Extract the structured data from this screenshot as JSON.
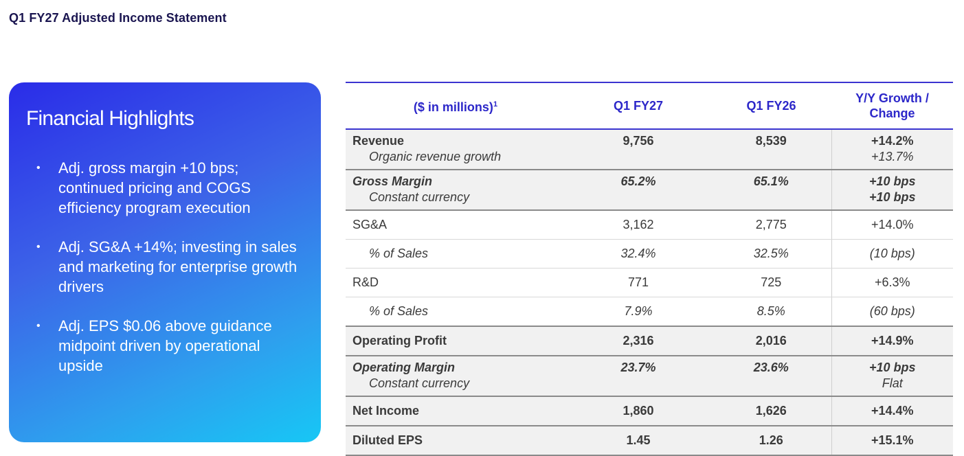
{
  "page": {
    "title": "Q1 FY27 Adjusted Income Statement"
  },
  "highlights": {
    "title": "Financial Highlights",
    "bullets": [
      "Adj. gross margin +10 bps; continued pricing and COGS efficiency program execution",
      "Adj. SG&A +14%; investing in sales and marketing for enterprise growth drivers",
      "Adj. EPS $0.06 above guidance midpoint driven by operational upside"
    ],
    "bullet_symbol": "•"
  },
  "table": {
    "headers": {
      "label": "($ in millions)",
      "label_sup": "1",
      "col1": "Q1 FY27",
      "col2": "Q1 FY26",
      "col3_line1": "Y/Y Growth /",
      "col3_line2": "Change"
    },
    "rows": {
      "revenue": {
        "label": "Revenue",
        "sublabel": "Organic revenue growth",
        "q1fy27": "9,756",
        "q1fy26": "8,539",
        "growth": "+14.2%",
        "growth_sub": "+13.7%"
      },
      "gross_margin": {
        "label": "Gross Margin",
        "sublabel": "Constant currency",
        "q1fy27": "65.2%",
        "q1fy26": "65.1%",
        "growth": "+10 bps",
        "growth_sub": "+10 bps"
      },
      "sga": {
        "label": "SG&A",
        "q1fy27": "3,162",
        "q1fy26": "2,775",
        "growth": "+14.0%"
      },
      "sga_pct": {
        "label": "% of Sales",
        "q1fy27": "32.4%",
        "q1fy26": "32.5%",
        "growth": "(10 bps)"
      },
      "rd": {
        "label": "R&D",
        "q1fy27": "771",
        "q1fy26": "725",
        "growth": "+6.3%"
      },
      "rd_pct": {
        "label": "% of Sales",
        "q1fy27": "7.9%",
        "q1fy26": "8.5%",
        "growth": "(60 bps)"
      },
      "operating_profit": {
        "label": "Operating Profit",
        "q1fy27": "2,316",
        "q1fy26": "2,016",
        "growth": "+14.9%"
      },
      "operating_margin": {
        "label": "Operating Margin",
        "sublabel": "Constant currency",
        "q1fy27": "23.7%",
        "q1fy26": "23.6%",
        "growth": "+10 bps",
        "growth_sub": "Flat"
      },
      "net_income": {
        "label": "Net Income",
        "q1fy27": "1,860",
        "q1fy26": "1,626",
        "growth": "+14.4%"
      },
      "diluted_eps": {
        "label": "Diluted EPS",
        "q1fy27": "1.45",
        "q1fy26": "1.26",
        "growth": "+15.1%"
      }
    }
  },
  "colors": {
    "title": "#1a1550",
    "header_accent": "#2c27c9",
    "card_gradient_start": "#2a2ce8",
    "card_gradient_end": "#17c7f5",
    "row_shade": "#f1f1f1"
  }
}
